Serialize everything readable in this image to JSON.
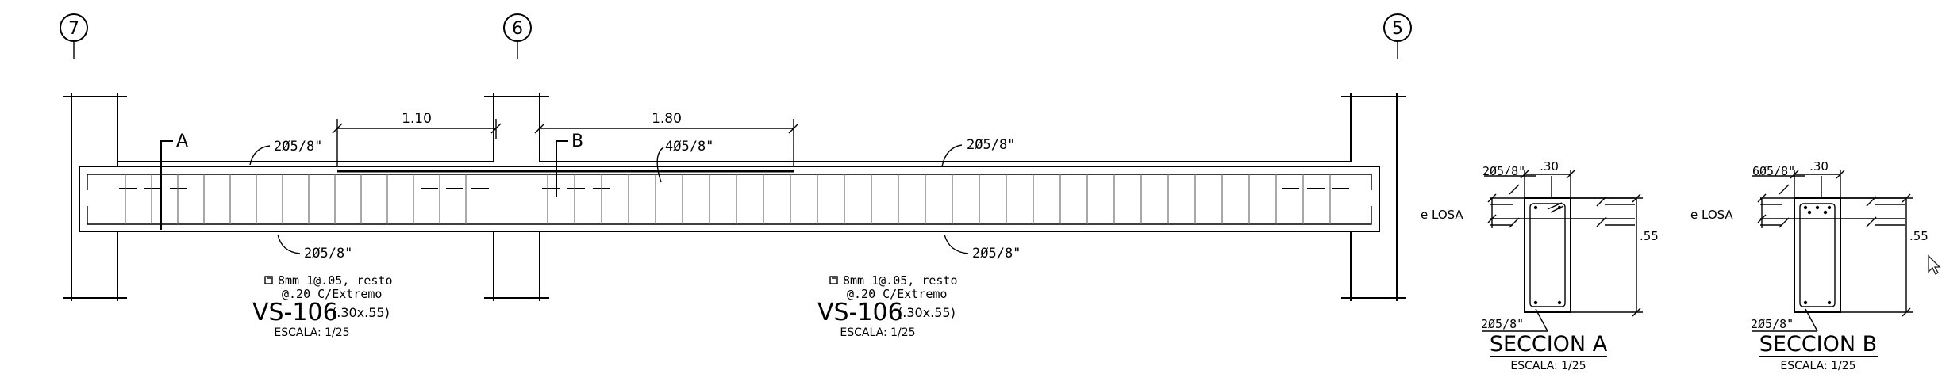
{
  "axes": [
    "7",
    "6",
    "5"
  ],
  "spans": {
    "left": "1.10",
    "right": "1.80"
  },
  "section_marks": {
    "a": "A",
    "b": "B"
  },
  "rebar": {
    "top": "2Ø5/8\"",
    "bottom": "2Ø5/8\"",
    "middle_extra": "4Ø5/8\""
  },
  "beam_notes": [
    {
      "stirrup_line1": "8mm 1@.05, resto",
      "stirrup_line2": "@.20 C/Extremo",
      "name": "VS-106",
      "size": "(.30x.55)",
      "scale": "ESCALA: 1/25"
    },
    {
      "stirrup_line1": "8mm 1@.05, resto",
      "stirrup_line2": "@.20 C/Extremo",
      "name": "VS-106",
      "size": "(.30x.55)",
      "scale": "ESCALA: 1/25"
    }
  ],
  "sections": [
    {
      "title": "SECCION A",
      "scale": "ESCALA: 1/25",
      "top_bars": "2Ø5/8\"",
      "bottom_bars": "2Ø5/8\"",
      "width": ".30",
      "height": ".55",
      "slab": "e LOSA"
    },
    {
      "title": "SECCION B",
      "scale": "ESCALA: 1/25",
      "top_bars": "6Ø5/8\"",
      "bottom_bars": "2Ø5/8\"",
      "width": ".30",
      "height": ".55",
      "slab": "e LOSA"
    }
  ]
}
